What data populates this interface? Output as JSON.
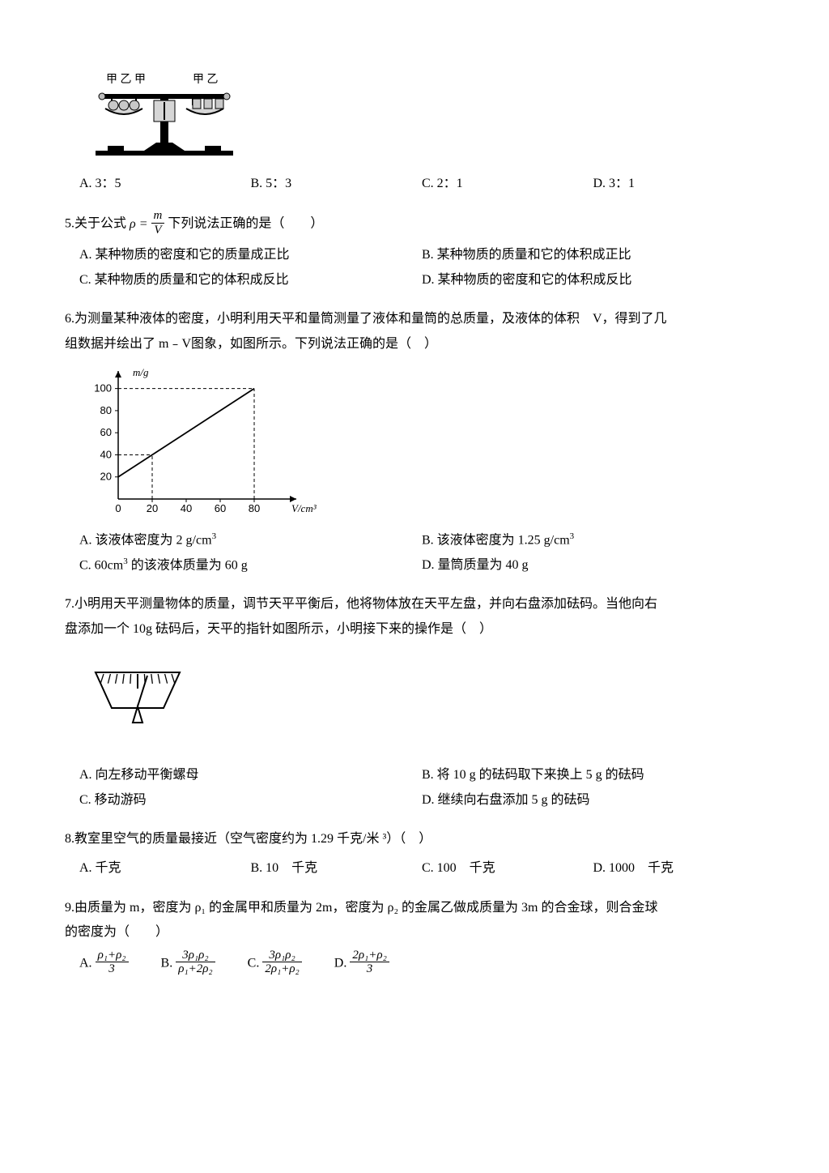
{
  "q4": {
    "options": {
      "A": "A. 3：5",
      "B": "B. 5：3",
      "C": "C. 2：1",
      "D": "D. 3：1"
    },
    "balance": {
      "pan_labels_left": "甲 乙 甲",
      "pan_labels_right": "甲 乙",
      "frame_color": "#000000",
      "shade_color": "#b8b8b8"
    }
  },
  "q5": {
    "stem_pre": "5.关于公式",
    "rho": "ρ",
    "eq": " = ",
    "frac_num": "m",
    "frac_den": "V",
    "stem_post": " 下列说法正确的是（　　）",
    "options": {
      "A": "A. 某种物质的密度和它的质量成正比",
      "B": "B. 某种物质的质量和它的体积成正比",
      "C": "C. 某种物质的质量和它的体积成反比",
      "D": "D. 某种物质的密度和它的体积成反比"
    }
  },
  "q6": {
    "stem1": "6.为测量某种液体的密度，小明利用天平和量筒测量了液体和量筒的总质量，及液体的体积　V，得到了几",
    "stem2": "组数据并绘出了 m﹣V图象，如图所示。下列说法正确的是（　）",
    "options": {
      "A": "A. 该液体密度为 2 g/cm",
      "B": "B. 该液体密度为 1.25 g/cm",
      "C_pre": "C. 60cm",
      "C_post": " 的该液体质量为 60 g",
      "D": "D. 量筒质量为 40 g"
    },
    "chart": {
      "type": "line",
      "x_label": "V/cm³",
      "y_label": "m/g",
      "x_ticks": [
        0,
        20,
        40,
        60,
        80
      ],
      "y_ticks": [
        20,
        40,
        60,
        80,
        100
      ],
      "xlim": [
        0,
        100
      ],
      "ylim": [
        0,
        110
      ],
      "line_points": [
        [
          0,
          20
        ],
        [
          80,
          100
        ]
      ],
      "dash_points": [
        [
          20,
          40
        ],
        [
          80,
          100
        ]
      ],
      "axis_color": "#000000",
      "line_color": "#000000",
      "dash_color": "#000000",
      "background_color": "#ffffff",
      "font_size": 13,
      "arrow_size": 7
    }
  },
  "q7": {
    "stem1": "7.小明用天平测量物体的质量，调节天平平衡后，他将物体放在天平左盘，并向右盘添加砝码。当他向右",
    "stem2": "盘添加一个 10g 砝码后，天平的指针如图所示，小明接下来的操作是（　）",
    "options": {
      "A": "A. 向左移动平衡螺母",
      "B": "B. 将 10 g 的砝码取下来换上 5 g 的砝码",
      "C": "C. 移动游码",
      "D": "D. 继续向右盘添加 5 g 的砝码"
    },
    "dial": {
      "outline_color": "#000000",
      "tick_count": 11,
      "pointer_tilt_deg": 12
    }
  },
  "q8": {
    "stem": "8.教室里空气的质量最接近（空气密度约为 1.29 千克/米 ³）（　）",
    "options": {
      "A": "A. 千克",
      "B": "B. 10　千克",
      "C": "C. 100　千克",
      "D": "D. 1000　千克"
    }
  },
  "q9": {
    "stem1": "9.由质量为 m，密度为 ρ₁ 的金属甲和质量为 2m，密度为 ρ₂ 的金属乙做成质量为 3m 的合金球，则合金球",
    "stem2": "的密度为（　　）",
    "options": {
      "A": {
        "label": "A.",
        "num": "ρ₁+ρ₂",
        "den": "3"
      },
      "B": {
        "label": "B.",
        "num": "3ρ₁ρ₂",
        "den": "ρ₁+2ρ₂"
      },
      "C": {
        "label": "C.",
        "num": "3ρ₁ρ₂",
        "den": "2ρ₁+ρ₂"
      },
      "D": {
        "label": "D.",
        "num": "2ρ₁+ρ₂",
        "den": "3"
      }
    }
  }
}
